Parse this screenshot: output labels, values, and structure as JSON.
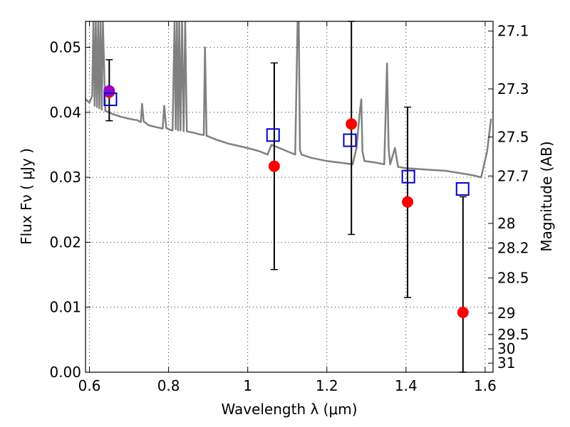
{
  "chart_data": {
    "type": "scatter",
    "title": "",
    "xlabel": "Wavelength  λ (μm)",
    "ylabel": "Flux  Fν  ( μJy )",
    "y2label": "Magnitude (AB)",
    "xlim": [
      0.59,
      1.62
    ],
    "ylim": [
      0.0,
      0.054
    ],
    "grid": true,
    "x_ticks": [
      0.6,
      0.8,
      1.0,
      1.2,
      1.4,
      1.6
    ],
    "x_tick_labels": [
      "0.6",
      "0.8",
      "1",
      "1.2",
      "1.4",
      "1.6"
    ],
    "y_ticks": [
      0.0,
      0.01,
      0.02,
      0.03,
      0.04,
      0.05
    ],
    "y_tick_labels": [
      "0.00",
      "0.01",
      "0.02",
      "0.03",
      "0.04",
      "0.05"
    ],
    "mag_ticks": [
      {
        "label": "27.1",
        "flux": 0.0525
      },
      {
        "label": "27.3",
        "flux": 0.0436
      },
      {
        "label": "27.5",
        "flux": 0.0362
      },
      {
        "label": "27.7",
        "flux": 0.0302
      },
      {
        "label": "28",
        "flux": 0.0229
      },
      {
        "label": "28.2",
        "flux": 0.0191
      },
      {
        "label": "28.5",
        "flux": 0.0145
      },
      {
        "label": "29",
        "flux": 0.0091
      },
      {
        "label": "29.5",
        "flux": 0.0058
      },
      {
        "label": "30",
        "flux": 0.0036
      },
      {
        "label": "31",
        "flux": 0.0014
      }
    ],
    "series": [
      {
        "type": "line",
        "color": "#808080",
        "x": [
          0.59,
          0.6,
          0.607,
          0.61,
          0.613,
          0.616,
          0.619,
          0.622,
          0.625,
          0.628,
          0.631,
          0.634,
          0.64,
          0.65,
          0.66,
          0.68,
          0.7,
          0.72,
          0.73,
          0.733,
          0.737,
          0.75,
          0.77,
          0.785,
          0.789,
          0.794,
          0.8,
          0.81,
          0.815,
          0.818,
          0.821,
          0.824,
          0.827,
          0.83,
          0.834,
          0.838,
          0.842,
          0.846,
          0.85,
          0.86,
          0.88,
          0.889,
          0.892,
          0.896,
          0.92,
          0.95,
          1.0,
          1.03,
          1.05,
          1.06,
          1.08,
          1.1,
          1.12,
          1.126,
          1.129,
          1.132,
          1.136,
          1.16,
          1.2,
          1.24,
          1.265,
          1.275,
          1.283,
          1.287,
          1.29,
          1.295,
          1.32,
          1.345,
          1.352,
          1.356,
          1.36,
          1.372,
          1.38,
          1.4,
          1.45,
          1.5,
          1.55,
          1.57,
          1.59,
          1.605,
          1.615
        ],
        "y": [
          0.042,
          0.0415,
          0.0425,
          0.054,
          0.041,
          0.054,
          0.0408,
          0.054,
          0.0406,
          0.054,
          0.0404,
          0.054,
          0.0402,
          0.04,
          0.0397,
          0.0393,
          0.039,
          0.0388,
          0.0385,
          0.0413,
          0.0386,
          0.038,
          0.0377,
          0.0375,
          0.041,
          0.0376,
          0.0374,
          0.0372,
          0.054,
          0.0374,
          0.054,
          0.0372,
          0.054,
          0.0372,
          0.054,
          0.0371,
          0.054,
          0.0371,
          0.037,
          0.0369,
          0.0366,
          0.0365,
          0.05,
          0.0364,
          0.0358,
          0.0352,
          0.0345,
          0.034,
          0.0335,
          0.035,
          0.0345,
          0.034,
          0.0335,
          0.054,
          0.054,
          0.0342,
          0.0335,
          0.033,
          0.0325,
          0.0322,
          0.032,
          0.0345,
          0.04,
          0.042,
          0.034,
          0.0325,
          0.0323,
          0.032,
          0.0475,
          0.0345,
          0.032,
          0.0345,
          0.0316,
          0.0314,
          0.0312,
          0.031,
          0.0305,
          0.0303,
          0.03,
          0.034,
          0.039
        ]
      },
      {
        "name": "",
        "type": "scatter",
        "marker": "circle",
        "color": "#ff0000",
        "x": [
          0.65,
          1.067,
          1.262,
          1.404,
          1.544
        ],
        "y": [
          0.0431,
          0.0317,
          0.0382,
          0.0262,
          0.0092
        ],
        "errorbars": [
          [
            0.65,
            0.0387,
            0.0481
          ],
          [
            1.067,
            0.0158,
            0.0476
          ],
          [
            1.262,
            0.0212,
            0.054
          ],
          [
            1.404,
            0.0115,
            0.0408
          ],
          [
            1.544,
            0.0,
            0.027
          ]
        ]
      },
      {
        "type": "scatter",
        "marker": "circle",
        "color": "#9900cc",
        "x": [
          0.65
        ],
        "y": [
          0.0433
        ]
      },
      {
        "type": "scatter",
        "marker": "open-square",
        "color": "#0000cc",
        "x": [
          0.653,
          1.064,
          1.258,
          1.406,
          1.543
        ],
        "y": [
          0.042,
          0.0365,
          0.0357,
          0.0301,
          0.0282
        ]
      }
    ]
  }
}
